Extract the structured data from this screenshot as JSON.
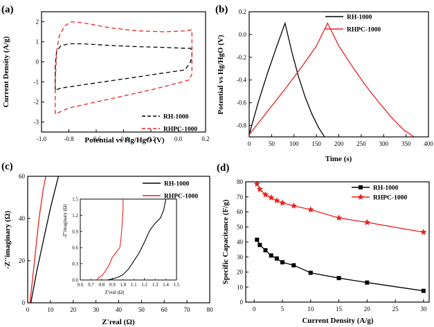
{
  "chart_data": [
    {
      "id": "a",
      "panel_label": "(a)",
      "type": "line",
      "xlabel": "Potential vs Hg/HgO (V)",
      "ylabel": "Current Density (A/g)",
      "xlim": [
        -1.0,
        0.2
      ],
      "ylim": [
        -3.5,
        2.5
      ],
      "xticks": [
        -1.0,
        -0.8,
        -0.6,
        -0.4,
        -0.2,
        0.0,
        0.2
      ],
      "xtick_labels": [
        "-1.0",
        "-0.8",
        "-0.6",
        "-0.4",
        "-0.2",
        "0.0",
        "0.2"
      ],
      "yticks": [
        -3,
        -2,
        -1,
        0,
        1,
        2
      ],
      "ytick_labels": [
        "-3",
        "-2",
        "-1",
        "0",
        "1",
        "2"
      ],
      "legend_position": "bottom-right",
      "series": [
        {
          "name": "RH-1000",
          "color": "#000000",
          "dash": "dashed",
          "x": [
            -0.9,
            -0.9,
            -0.89,
            -0.86,
            -0.8,
            -0.7,
            -0.5,
            -0.3,
            -0.1,
            0.05,
            0.09,
            0.1,
            0.1,
            0.09,
            0.05,
            -0.1,
            -0.3,
            -0.5,
            -0.7,
            -0.85,
            -0.9
          ],
          "y": [
            -1.4,
            -0.2,
            0.5,
            0.8,
            0.9,
            0.9,
            0.82,
            0.76,
            0.72,
            0.68,
            0.68,
            0.5,
            0.3,
            0.0,
            -0.4,
            -0.55,
            -0.75,
            -0.95,
            -1.15,
            -1.3,
            -1.4
          ]
        },
        {
          "name": "RHPC-1000",
          "color": "#e8211f",
          "dash": "dashed",
          "x": [
            -0.9,
            -0.9,
            -0.89,
            -0.87,
            -0.83,
            -0.78,
            -0.7,
            -0.5,
            -0.3,
            -0.1,
            0.05,
            0.1,
            0.1,
            0.1,
            0.08,
            0.0,
            -0.2,
            -0.4,
            -0.6,
            -0.8,
            -0.9
          ],
          "y": [
            -2.6,
            -1.0,
            0.5,
            1.3,
            1.8,
            2.0,
            1.95,
            1.7,
            1.55,
            1.5,
            1.55,
            1.6,
            0.5,
            -0.6,
            -0.9,
            -1.05,
            -1.4,
            -1.7,
            -2.0,
            -2.3,
            -2.6
          ]
        }
      ]
    },
    {
      "id": "b",
      "panel_label": "(b)",
      "type": "line",
      "xlabel": "Time (s)",
      "ylabel": "Potential vs Hg/HgO (V)",
      "xlim": [
        0,
        400
      ],
      "ylim": [
        -0.9,
        0.2
      ],
      "xticks": [
        0,
        50,
        100,
        150,
        200,
        250,
        300,
        350,
        400
      ],
      "xtick_labels": [
        "0",
        "50",
        "100",
        "150",
        "200",
        "250",
        "300",
        "350",
        "400"
      ],
      "yticks": [
        -0.8,
        -0.6,
        -0.4,
        -0.2,
        0.0,
        0.2
      ],
      "ytick_labels": [
        "-0.8",
        "-0.6",
        "-0.4",
        "-0.2",
        "0.0",
        "0.2"
      ],
      "legend_position": "top-right",
      "series": [
        {
          "name": "RH-1000",
          "color": "#000000",
          "dash": "solid",
          "x": [
            0,
            20,
            40,
            60,
            80,
            95,
            110,
            125,
            140,
            155,
            168
          ],
          "y": [
            -0.88,
            -0.6,
            -0.35,
            -0.12,
            0.1,
            -0.15,
            -0.37,
            -0.55,
            -0.7,
            -0.82,
            -0.9
          ]
        },
        {
          "name": "RHPC-1000",
          "color": "#e8211f",
          "dash": "solid",
          "x": [
            0,
            40,
            80,
            120,
            150,
            175,
            200,
            230,
            260,
            290,
            320,
            345,
            368
          ],
          "y": [
            -0.88,
            -0.68,
            -0.48,
            -0.27,
            -0.1,
            0.1,
            -0.1,
            -0.28,
            -0.45,
            -0.6,
            -0.74,
            -0.84,
            -0.9
          ]
        }
      ]
    },
    {
      "id": "c",
      "panel_label": "(c)",
      "type": "line",
      "xlabel": "Z'real (Ω)",
      "ylabel": "-Z''imaginary (Ω)",
      "xlim": [
        0,
        80
      ],
      "ylim": [
        0,
        60
      ],
      "xticks": [
        0,
        10,
        20,
        30,
        40,
        50,
        60,
        70,
        80
      ],
      "xtick_labels": [
        "0",
        "10",
        "20",
        "30",
        "40",
        "50",
        "60",
        "70",
        "80"
      ],
      "yticks": [
        0,
        20,
        40,
        60
      ],
      "ytick_labels": [
        "0",
        "20",
        "40",
        "60"
      ],
      "legend_position": "top-right",
      "series": [
        {
          "name": "RH-1000",
          "color": "#000000",
          "dash": "solid",
          "x": [
            1.4,
            4,
            7,
            10,
            13.5
          ],
          "y": [
            0,
            15,
            30,
            45,
            60
          ]
        },
        {
          "name": "RHPC-1000",
          "color": "#e8211f",
          "dash": "solid",
          "x": [
            1.0,
            3,
            5,
            7,
            8
          ],
          "y": [
            0,
            20,
            40,
            55,
            60
          ]
        }
      ],
      "inset": {
        "xlabel": "Z'real (Ω)",
        "ylabel": "-Z''imaginary (Ω)",
        "xlim": [
          0.6,
          1.5
        ],
        "ylim": [
          0.0,
          1.5
        ],
        "xticks": [
          0.6,
          0.9,
          1.2,
          1.5
        ],
        "xtick_labels": [
          "0.6",
          "0.9",
          "1.2",
          "1.5"
        ],
        "xticks_minor": [
          0.7,
          0.8,
          1.0,
          1.1,
          1.3,
          1.4
        ],
        "xtick_labels_minor": [
          "0.7",
          "0.8",
          "1.0",
          "1.1",
          "1.3",
          "1.4"
        ],
        "yticks": [
          0.0,
          0.3,
          0.6,
          0.9,
          1.2,
          1.5
        ],
        "ytick_labels": [
          "0.0",
          "0.3",
          "0.6",
          "0.9",
          "1.2",
          "1.5"
        ],
        "series": [
          {
            "name": "RH-1000",
            "color": "#000000",
            "x": [
              0.85,
              0.9,
              0.95,
              1.0,
              1.05,
              1.1,
              1.15,
              1.2,
              1.25,
              1.3,
              1.35,
              1.38,
              1.4
            ],
            "y": [
              0.0,
              0.02,
              0.05,
              0.1,
              0.2,
              0.35,
              0.5,
              0.7,
              0.92,
              1.05,
              1.15,
              1.3,
              1.5
            ]
          },
          {
            "name": "RHPC-1000",
            "color": "#e8211f",
            "x": [
              0.75,
              0.78,
              0.8,
              0.83,
              0.87,
              0.9,
              0.93,
              0.95,
              0.97,
              0.98,
              0.99,
              1.0,
              1.0
            ],
            "y": [
              0.0,
              0.05,
              0.08,
              0.15,
              0.28,
              0.42,
              0.5,
              0.55,
              0.6,
              0.75,
              1.0,
              1.3,
              1.5
            ]
          }
        ]
      }
    },
    {
      "id": "d",
      "panel_label": "(d)",
      "type": "line",
      "xlabel": "Current Density (A/g)",
      "ylabel": "Specific Capacitance (F/g)",
      "xlim": [
        -1.5,
        31
      ],
      "ylim": [
        0,
        80
      ],
      "xticks": [
        0,
        5,
        10,
        15,
        20,
        25,
        30
      ],
      "xtick_labels": [
        "0",
        "5",
        "10",
        "15",
        "20",
        "25",
        "30"
      ],
      "yticks": [
        0,
        10,
        20,
        30,
        40,
        50,
        60,
        70,
        80
      ],
      "ytick_labels": [
        "0",
        "10",
        "20",
        "30",
        "40",
        "50",
        "60",
        "70",
        "80"
      ],
      "legend_position": "top-right",
      "series": [
        {
          "name": "RH-1000",
          "color": "#000000",
          "marker": "square",
          "x": [
            0.5,
            1,
            2,
            3,
            4,
            5,
            7,
            10,
            15,
            20,
            30
          ],
          "y": [
            41.5,
            38,
            34.5,
            31,
            29,
            26.5,
            24.5,
            19.5,
            16,
            13,
            7.5
          ]
        },
        {
          "name": "RHPC-1000",
          "color": "#e8211f",
          "marker": "star",
          "x": [
            0.5,
            1,
            2,
            3,
            4,
            5,
            7,
            10,
            15,
            20,
            30
          ],
          "y": [
            78.5,
            75,
            71.5,
            69.5,
            67.5,
            66,
            64,
            61.5,
            56,
            53,
            46.5
          ]
        }
      ]
    }
  ]
}
